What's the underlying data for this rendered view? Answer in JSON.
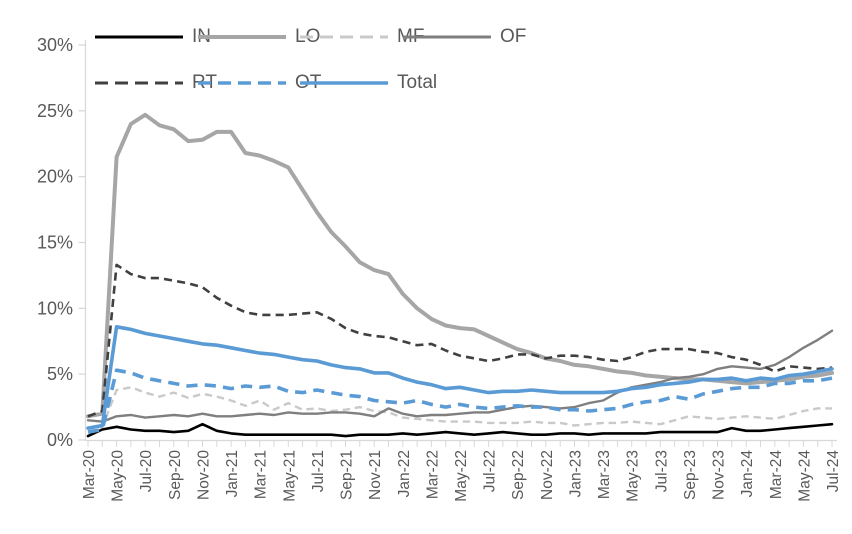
{
  "chart_data": {
    "type": "line",
    "title": "",
    "xlabel": "",
    "ylabel": "",
    "ylim": [
      0,
      30
    ],
    "grid": false,
    "legend_position": "top",
    "y_ticks": [
      "0%",
      "5%",
      "10%",
      "15%",
      "20%",
      "25%",
      "30%"
    ],
    "x_tick_labels": [
      "Mar-20",
      "May-20",
      "Jul-20",
      "Sep-20",
      "Nov-20",
      "Jan-21",
      "Mar-21",
      "May-21",
      "Jul-21",
      "Sep-21",
      "Nov-21",
      "Jan-22",
      "Mar-22",
      "May-22",
      "Jul-22",
      "Sep-22",
      "Nov-22",
      "Jan-23",
      "Mar-23",
      "May-23",
      "Jul-23",
      "Sep-23",
      "Nov-23",
      "Jan-24",
      "Mar-24",
      "May-24",
      "Jul-24"
    ],
    "categories": [
      "Mar-20",
      "Apr-20",
      "May-20",
      "Jun-20",
      "Jul-20",
      "Aug-20",
      "Sep-20",
      "Oct-20",
      "Nov-20",
      "Dec-20",
      "Jan-21",
      "Feb-21",
      "Mar-21",
      "Apr-21",
      "May-21",
      "Jun-21",
      "Jul-21",
      "Aug-21",
      "Sep-21",
      "Oct-21",
      "Nov-21",
      "Dec-21",
      "Jan-22",
      "Feb-22",
      "Mar-22",
      "Apr-22",
      "May-22",
      "Jun-22",
      "Jul-22",
      "Aug-22",
      "Sep-22",
      "Oct-22",
      "Nov-22",
      "Dec-22",
      "Jan-23",
      "Feb-23",
      "Mar-23",
      "Apr-23",
      "May-23",
      "Jun-23",
      "Jul-23",
      "Aug-23",
      "Sep-23",
      "Oct-23",
      "Nov-23",
      "Dec-23",
      "Jan-24",
      "Feb-24",
      "Mar-24",
      "Apr-24",
      "May-24",
      "Jun-24",
      "Jul-24"
    ],
    "legend_rows": [
      [
        "IN",
        "LO",
        "MF",
        "OF"
      ],
      [
        "RT",
        "OT",
        "Total"
      ]
    ],
    "series": [
      {
        "name": "IN",
        "color": "#000000",
        "style": "solid",
        "width": 2.6,
        "values": [
          0.3,
          0.8,
          1.0,
          0.8,
          0.7,
          0.7,
          0.6,
          0.7,
          1.2,
          0.7,
          0.5,
          0.4,
          0.4,
          0.4,
          0.4,
          0.4,
          0.4,
          0.4,
          0.3,
          0.4,
          0.4,
          0.4,
          0.5,
          0.4,
          0.5,
          0.6,
          0.5,
          0.4,
          0.5,
          0.6,
          0.5,
          0.4,
          0.4,
          0.5,
          0.5,
          0.4,
          0.5,
          0.5,
          0.5,
          0.5,
          0.6,
          0.6,
          0.6,
          0.6,
          0.6,
          0.9,
          0.7,
          0.7,
          0.8,
          0.9,
          1.0,
          1.1,
          1.2
        ]
      },
      {
        "name": "LO",
        "color": "#a6a6a6",
        "style": "solid",
        "width": 4,
        "values": [
          1.8,
          2.0,
          21.5,
          24.0,
          24.7,
          23.9,
          23.6,
          22.7,
          22.8,
          23.4,
          23.4,
          21.8,
          21.6,
          21.2,
          20.7,
          19.0,
          17.3,
          15.8,
          14.7,
          13.5,
          12.9,
          12.6,
          11.1,
          10.0,
          9.2,
          8.7,
          8.5,
          8.4,
          7.9,
          7.4,
          6.9,
          6.6,
          6.2,
          6.0,
          5.7,
          5.6,
          5.4,
          5.2,
          5.1,
          4.9,
          4.8,
          4.7,
          4.6,
          4.6,
          4.5,
          4.4,
          4.3,
          4.4,
          4.5,
          4.6,
          4.8,
          4.9,
          5.1
        ]
      },
      {
        "name": "MF",
        "color": "#c9c9c9",
        "style": "dashed",
        "width": 2.4,
        "values": [
          0.7,
          1.0,
          3.8,
          4.0,
          3.6,
          3.3,
          3.6,
          3.2,
          3.5,
          3.3,
          3.0,
          2.6,
          3.0,
          2.3,
          2.8,
          2.3,
          2.4,
          2.2,
          2.3,
          2.5,
          2.2,
          2.1,
          1.7,
          1.6,
          1.5,
          1.4,
          1.4,
          1.4,
          1.3,
          1.3,
          1.3,
          1.4,
          1.3,
          1.3,
          1.1,
          1.2,
          1.3,
          1.3,
          1.4,
          1.3,
          1.2,
          1.5,
          1.8,
          1.7,
          1.6,
          1.7,
          1.8,
          1.7,
          1.6,
          1.9,
          2.2,
          2.4,
          2.4
        ]
      },
      {
        "name": "OF",
        "color": "#7f7f7f",
        "style": "solid",
        "width": 2.4,
        "values": [
          1.5,
          1.4,
          1.8,
          1.9,
          1.7,
          1.8,
          1.9,
          1.8,
          2.0,
          1.8,
          1.8,
          1.9,
          2.0,
          1.9,
          2.1,
          2.0,
          2.0,
          2.1,
          2.1,
          2.0,
          1.8,
          2.4,
          2.0,
          1.8,
          1.9,
          1.9,
          2.0,
          2.1,
          2.1,
          2.3,
          2.5,
          2.6,
          2.5,
          2.4,
          2.5,
          2.8,
          3.0,
          3.6,
          4.0,
          4.2,
          4.4,
          4.7,
          4.8,
          5.0,
          5.4,
          5.6,
          5.5,
          5.4,
          5.7,
          6.3,
          7.0,
          7.6,
          8.3
        ]
      },
      {
        "name": "RT",
        "color": "#404040",
        "style": "dashed",
        "width": 2.6,
        "values": [
          1.8,
          2.2,
          13.3,
          12.6,
          12.3,
          12.3,
          12.1,
          11.9,
          11.6,
          10.8,
          10.2,
          9.7,
          9.5,
          9.5,
          9.5,
          9.6,
          9.7,
          9.2,
          8.5,
          8.1,
          7.9,
          7.8,
          7.5,
          7.2,
          7.3,
          6.8,
          6.4,
          6.2,
          6.0,
          6.2,
          6.5,
          6.5,
          6.2,
          6.4,
          6.4,
          6.3,
          6.1,
          6.0,
          6.3,
          6.7,
          6.9,
          6.9,
          6.9,
          6.7,
          6.6,
          6.3,
          6.1,
          5.7,
          5.2,
          5.6,
          5.5,
          5.4,
          5.5
        ]
      },
      {
        "name": "OT",
        "color": "#5b9bd5",
        "style": "dashed",
        "width": 3.6,
        "values": [
          0.6,
          0.8,
          5.3,
          5.1,
          4.7,
          4.5,
          4.3,
          4.1,
          4.2,
          4.1,
          3.9,
          4.1,
          4.0,
          4.1,
          3.7,
          3.6,
          3.8,
          3.6,
          3.4,
          3.3,
          3.0,
          2.9,
          2.8,
          3.0,
          2.7,
          2.5,
          2.7,
          2.5,
          2.4,
          2.5,
          2.6,
          2.5,
          2.5,
          2.3,
          2.3,
          2.2,
          2.3,
          2.4,
          2.7,
          2.9,
          3.0,
          3.3,
          3.1,
          3.5,
          3.7,
          3.9,
          4.0,
          4.0,
          4.3,
          4.3,
          4.5,
          4.5,
          4.7
        ]
      },
      {
        "name": "Total",
        "color": "#5b9bd5",
        "style": "solid",
        "width": 3.6,
        "values": [
          0.9,
          1.1,
          8.6,
          8.4,
          8.1,
          7.9,
          7.7,
          7.5,
          7.3,
          7.2,
          7.0,
          6.8,
          6.6,
          6.5,
          6.3,
          6.1,
          6.0,
          5.7,
          5.5,
          5.4,
          5.1,
          5.1,
          4.7,
          4.4,
          4.2,
          3.9,
          4.0,
          3.8,
          3.6,
          3.7,
          3.7,
          3.8,
          3.7,
          3.6,
          3.6,
          3.6,
          3.6,
          3.7,
          3.9,
          4.0,
          4.2,
          4.3,
          4.4,
          4.6,
          4.6,
          4.7,
          4.5,
          4.7,
          4.6,
          4.9,
          5.0,
          5.2,
          5.4
        ]
      }
    ]
  },
  "axes": {
    "axis_color": "#d9d9d9",
    "label_color": "#595959"
  }
}
